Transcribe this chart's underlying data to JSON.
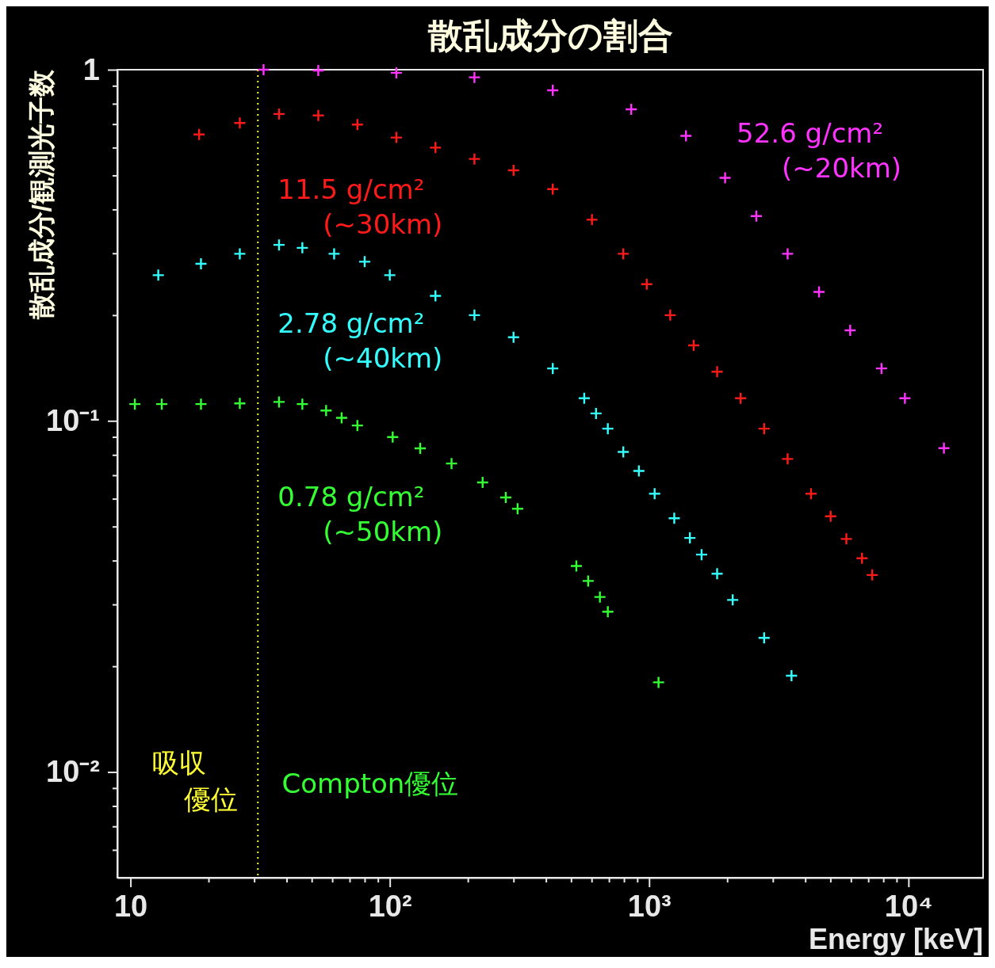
{
  "chart_data": {
    "type": "scatter",
    "title": "散乱成分の割合",
    "xlabel": "Energy [keV]",
    "ylabel": "散乱成分/観測光子数",
    "log": "xy",
    "marker": "cross",
    "xlim": [
      8.9,
      19400
    ],
    "ylim": [
      0.005,
      1
    ],
    "xticks": [
      {
        "value": 10,
        "label": "10"
      },
      {
        "value": 20,
        "label": null
      },
      {
        "value": 30,
        "label": null
      },
      {
        "value": 40,
        "label": null
      },
      {
        "value": 50,
        "label": null
      },
      {
        "value": 60,
        "label": null
      },
      {
        "value": 70,
        "label": null
      },
      {
        "value": 80,
        "label": null
      },
      {
        "value": 90,
        "label": null
      },
      {
        "value": 100,
        "label": "10²"
      },
      {
        "value": 200,
        "label": null
      },
      {
        "value": 300,
        "label": null
      },
      {
        "value": 400,
        "label": null
      },
      {
        "value": 500,
        "label": null
      },
      {
        "value": 600,
        "label": null
      },
      {
        "value": 700,
        "label": null
      },
      {
        "value": 800,
        "label": null
      },
      {
        "value": 900,
        "label": null
      },
      {
        "value": 1000,
        "label": "10³"
      },
      {
        "value": 2000,
        "label": null
      },
      {
        "value": 3000,
        "label": null
      },
      {
        "value": 4000,
        "label": null
      },
      {
        "value": 5000,
        "label": null
      },
      {
        "value": 6000,
        "label": null
      },
      {
        "value": 7000,
        "label": null
      },
      {
        "value": 8000,
        "label": null
      },
      {
        "value": 9000,
        "label": null
      },
      {
        "value": 10000,
        "label": "10⁴"
      }
    ],
    "yticks": [
      {
        "value": 0.006,
        "label": null
      },
      {
        "value": 0.007,
        "label": null
      },
      {
        "value": 0.008,
        "label": null
      },
      {
        "value": 0.009,
        "label": null
      },
      {
        "value": 0.01,
        "label": "10⁻²"
      },
      {
        "value": 0.02,
        "label": null
      },
      {
        "value": 0.03,
        "label": null
      },
      {
        "value": 0.04,
        "label": null
      },
      {
        "value": 0.05,
        "label": null
      },
      {
        "value": 0.06,
        "label": null
      },
      {
        "value": 0.07,
        "label": null
      },
      {
        "value": 0.08,
        "label": null
      },
      {
        "value": 0.09,
        "label": null
      },
      {
        "value": 0.1,
        "label": "10⁻¹"
      },
      {
        "value": 0.2,
        "label": null
      },
      {
        "value": 0.3,
        "label": null
      },
      {
        "value": 0.4,
        "label": null
      },
      {
        "value": 0.5,
        "label": null
      },
      {
        "value": 0.6,
        "label": null
      },
      {
        "value": 0.7,
        "label": null
      },
      {
        "value": 0.8,
        "label": null
      },
      {
        "value": 0.9,
        "label": null
      },
      {
        "value": 1,
        "label": "1"
      }
    ],
    "ref_lines": [
      {
        "axis": "x",
        "value": 31,
        "color": "#ffff33",
        "line_style": "dotted"
      }
    ],
    "annotations": [
      "吸収優位",
      "Compton優位"
    ],
    "series": [
      {
        "name": "52.6 g/cm² (~20km)",
        "color": "#ff33ff",
        "x": [
          32.6,
          53,
          106,
          212,
          425,
          853,
          1387,
          1963,
          2590,
          3420,
          4520,
          5960,
          7870,
          9690,
          13700
        ],
        "values": [
          1,
          0.995,
          0.98,
          0.951,
          0.874,
          0.771,
          0.648,
          0.492,
          0.383,
          0.299,
          0.233,
          0.181,
          0.141,
          0.116,
          0.0836
        ]
      },
      {
        "name": "11.5 g/cm² (~30km)",
        "color": "#ff1a1a",
        "x": [
          18.4,
          26.4,
          37.4,
          53,
          75,
          106,
          150,
          212,
          300,
          425,
          602,
          795,
          979,
          1206,
          1485,
          1829,
          2254,
          2776,
          3420,
          4210,
          5010,
          5760,
          6620,
          7250
        ],
        "values": [
          0.654,
          0.705,
          0.748,
          0.741,
          0.698,
          0.641,
          0.6,
          0.557,
          0.517,
          0.457,
          0.374,
          0.299,
          0.245,
          0.2,
          0.164,
          0.138,
          0.116,
          0.095,
          0.0779,
          0.062,
          0.0535,
          0.0461,
          0.0406,
          0.0364
        ]
      },
      {
        "name": "2.78 g/cm² (~40km)",
        "color": "#33ffff",
        "x": [
          12.8,
          18.7,
          26.4,
          37.4,
          46,
          61,
          80,
          100,
          150,
          212,
          300,
          425,
          562,
          624,
          693,
          795,
          913,
          1050,
          1250,
          1436,
          1593,
          1829,
          2100,
          2776,
          3540
        ],
        "values": [
          0.26,
          0.28,
          0.299,
          0.317,
          0.311,
          0.299,
          0.284,
          0.26,
          0.227,
          0.2,
          0.173,
          0.141,
          0.116,
          0.105,
          0.095,
          0.0816,
          0.072,
          0.062,
          0.0528,
          0.0464,
          0.0416,
          0.0367,
          0.0309,
          0.0241,
          0.0188
        ]
      },
      {
        "name": "0.78 g/cm² (~50km)",
        "color": "#33ff33",
        "x": [
          10.4,
          13.2,
          18.7,
          26.4,
          37.4,
          46,
          56.8,
          65.2,
          75,
          102.6,
          131,
          173,
          228,
          280,
          311,
          524,
          582,
          646,
          693,
          1087
        ],
        "values": [
          0.1116,
          0.1116,
          0.1116,
          0.1121,
          0.1132,
          0.1116,
          0.107,
          0.102,
          0.097,
          0.0899,
          0.0835,
          0.0756,
          0.0668,
          0.0605,
          0.0562,
          0.0386,
          0.035,
          0.0315,
          0.0286,
          0.018
        ]
      }
    ]
  }
}
